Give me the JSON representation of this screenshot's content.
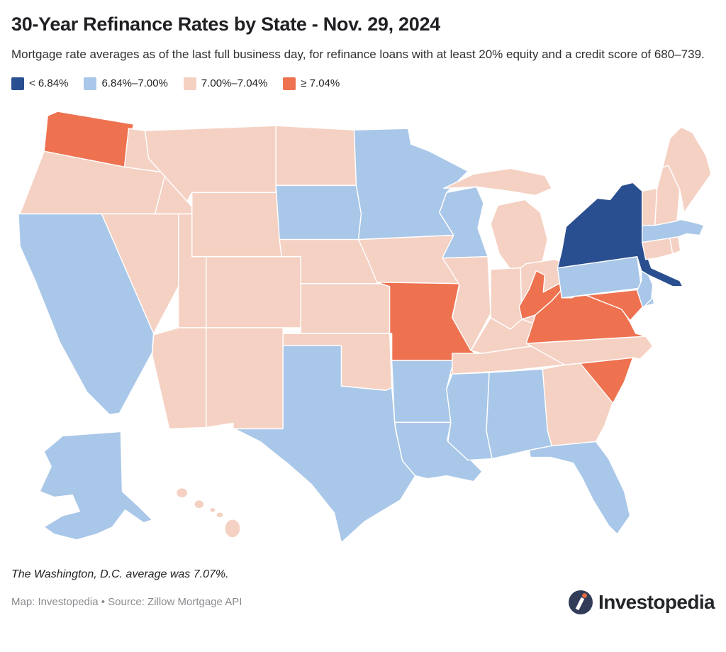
{
  "header": {
    "title": "30-Year Refinance Rates by State - Nov. 29, 2024",
    "subtitle": "Mortgage rate averages as of the last full business day, for refinance loans with at least 20% equity and a credit score of 680–739."
  },
  "chart_data": {
    "type": "heatmap",
    "subtype": "us-state-choropleth",
    "title": "30-Year Refinance Rates by State - Nov. 29, 2024",
    "unit": "percent (30-year refinance rate)",
    "legend_position": "top-left",
    "bins": [
      {
        "id": "b1",
        "label": "< 6.84%",
        "color": "#2A4F90"
      },
      {
        "id": "b2",
        "label": "6.84%–7.00%",
        "color": "#A9C7E8"
      },
      {
        "id": "b3",
        "label": "7.00%–7.04%",
        "color": "#F5D1C3"
      },
      {
        "id": "b4",
        "label": "≥ 7.04%",
        "color": "#EE7250"
      }
    ],
    "states": [
      {
        "id": "WA",
        "name": "Washington",
        "bin": "b4"
      },
      {
        "id": "OR",
        "name": "Oregon",
        "bin": "b3"
      },
      {
        "id": "CA",
        "name": "California",
        "bin": "b2"
      },
      {
        "id": "NV",
        "name": "Nevada",
        "bin": "b3"
      },
      {
        "id": "ID",
        "name": "Idaho",
        "bin": "b3"
      },
      {
        "id": "MT",
        "name": "Montana",
        "bin": "b3"
      },
      {
        "id": "WY",
        "name": "Wyoming",
        "bin": "b3"
      },
      {
        "id": "UT",
        "name": "Utah",
        "bin": "b3"
      },
      {
        "id": "CO",
        "name": "Colorado",
        "bin": "b3"
      },
      {
        "id": "AZ",
        "name": "Arizona",
        "bin": "b3"
      },
      {
        "id": "NM",
        "name": "New Mexico",
        "bin": "b3"
      },
      {
        "id": "ND",
        "name": "North Dakota",
        "bin": "b3"
      },
      {
        "id": "SD",
        "name": "South Dakota",
        "bin": "b2"
      },
      {
        "id": "NE",
        "name": "Nebraska",
        "bin": "b3"
      },
      {
        "id": "KS",
        "name": "Kansas",
        "bin": "b3"
      },
      {
        "id": "OK",
        "name": "Oklahoma",
        "bin": "b3"
      },
      {
        "id": "TX",
        "name": "Texas",
        "bin": "b2"
      },
      {
        "id": "MN",
        "name": "Minnesota",
        "bin": "b2"
      },
      {
        "id": "IA",
        "name": "Iowa",
        "bin": "b3"
      },
      {
        "id": "MO",
        "name": "Missouri",
        "bin": "b4"
      },
      {
        "id": "AR",
        "name": "Arkansas",
        "bin": "b2"
      },
      {
        "id": "LA",
        "name": "Louisiana",
        "bin": "b2"
      },
      {
        "id": "WI",
        "name": "Wisconsin",
        "bin": "b2"
      },
      {
        "id": "IL",
        "name": "Illinois",
        "bin": "b3"
      },
      {
        "id": "MI",
        "name": "Michigan",
        "bin": "b3"
      },
      {
        "id": "IN",
        "name": "Indiana",
        "bin": "b3"
      },
      {
        "id": "OH",
        "name": "Ohio",
        "bin": "b3"
      },
      {
        "id": "KY",
        "name": "Kentucky",
        "bin": "b3"
      },
      {
        "id": "TN",
        "name": "Tennessee",
        "bin": "b3"
      },
      {
        "id": "MS",
        "name": "Mississippi",
        "bin": "b2"
      },
      {
        "id": "AL",
        "name": "Alabama",
        "bin": "b2"
      },
      {
        "id": "GA",
        "name": "Georgia",
        "bin": "b3"
      },
      {
        "id": "FL",
        "name": "Florida",
        "bin": "b2"
      },
      {
        "id": "SC",
        "name": "South Carolina",
        "bin": "b4"
      },
      {
        "id": "NC",
        "name": "North Carolina",
        "bin": "b3"
      },
      {
        "id": "VA",
        "name": "Virginia",
        "bin": "b4"
      },
      {
        "id": "WV",
        "name": "West Virginia",
        "bin": "b4"
      },
      {
        "id": "MD",
        "name": "Maryland",
        "bin": "b4"
      },
      {
        "id": "DE",
        "name": "Delaware",
        "bin": "b2"
      },
      {
        "id": "PA",
        "name": "Pennsylvania",
        "bin": "b2"
      },
      {
        "id": "NJ",
        "name": "New Jersey",
        "bin": "b2"
      },
      {
        "id": "NY",
        "name": "New York",
        "bin": "b1"
      },
      {
        "id": "CT",
        "name": "Connecticut",
        "bin": "b3"
      },
      {
        "id": "RI",
        "name": "Rhode Island",
        "bin": "b3"
      },
      {
        "id": "MA",
        "name": "Massachusetts",
        "bin": "b2"
      },
      {
        "id": "VT",
        "name": "Vermont",
        "bin": "b3"
      },
      {
        "id": "NH",
        "name": "New Hampshire",
        "bin": "b3"
      },
      {
        "id": "ME",
        "name": "Maine",
        "bin": "b3"
      },
      {
        "id": "AK",
        "name": "Alaska",
        "bin": "b2"
      },
      {
        "id": "HI",
        "name": "Hawaii",
        "bin": "b3"
      }
    ],
    "annotation": "The Washington, D.C. average was 7.07%."
  },
  "footer": {
    "note": "The Washington, D.C. average was 7.07%.",
    "credits": "Map: Investopedia • Source: Zillow Mortgage API",
    "brand": "Investopedia"
  },
  "colors": {
    "brand_navy": "#303C58",
    "brand_orange": "#E66B3F",
    "title_text": "#1F2023",
    "credits_text": "#8A8B90"
  }
}
